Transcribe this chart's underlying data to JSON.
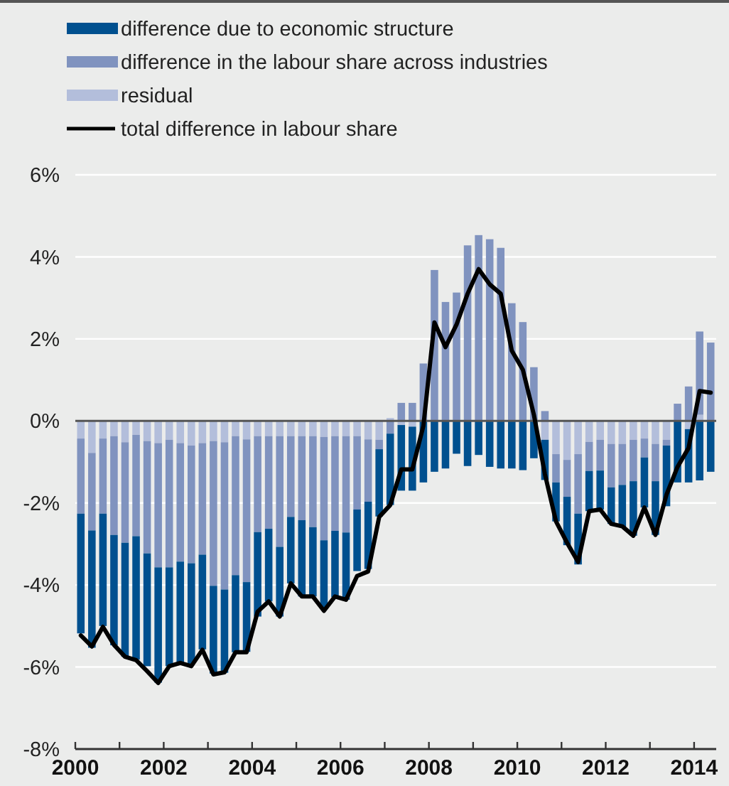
{
  "chart_data": {
    "type": "bar",
    "stacked": true,
    "x": [
      2000.125,
      2000.375,
      2000.625,
      2000.875,
      2001.125,
      2001.375,
      2001.625,
      2001.875,
      2002.125,
      2002.375,
      2002.625,
      2002.875,
      2003.125,
      2003.375,
      2003.625,
      2003.875,
      2004.125,
      2004.375,
      2004.625,
      2004.875,
      2005.125,
      2005.375,
      2005.625,
      2005.875,
      2006.125,
      2006.375,
      2006.625,
      2006.875,
      2007.125,
      2007.375,
      2007.625,
      2007.875,
      2008.125,
      2008.375,
      2008.625,
      2008.875,
      2009.125,
      2009.375,
      2009.625,
      2009.875,
      2010.125,
      2010.375,
      2010.625,
      2010.875,
      2011.125,
      2011.375,
      2011.625,
      2011.875,
      2012.125,
      2012.375,
      2012.625,
      2012.875,
      2013.125,
      2013.375,
      2013.625,
      2013.875,
      2014.125,
      2014.375
    ],
    "series": [
      {
        "name": "residual",
        "color": "#b3bedb",
        "values": [
          -0.43,
          -0.78,
          -0.43,
          -0.37,
          -0.52,
          -0.34,
          -0.49,
          -0.54,
          -0.46,
          -0.54,
          -0.6,
          -0.54,
          -0.49,
          -0.52,
          -0.37,
          -0.45,
          -0.37,
          -0.37,
          -0.37,
          -0.37,
          -0.37,
          -0.37,
          -0.39,
          -0.37,
          -0.37,
          -0.37,
          -0.45,
          -0.46,
          0.07,
          -0.1,
          -0.14,
          0,
          0,
          0,
          0,
          0,
          0,
          0,
          0,
          0,
          0,
          null,
          -0.46,
          -0.81,
          -0.95,
          -0.81,
          -0.51,
          -0.46,
          -0.56,
          -0.56,
          -0.46,
          -0.43,
          -0.56,
          -0.46,
          0,
          -0.2,
          0.15,
          0
        ]
      },
      {
        "name": "difference in the labour share across industries",
        "color": "#8093bf",
        "values": [
          -1.83,
          -1.89,
          -1.83,
          -2.41,
          -2.45,
          -2.47,
          -2.74,
          -3.03,
          -3.11,
          -2.89,
          -2.87,
          -2.72,
          -3.53,
          -3.59,
          -3.39,
          -3.48,
          -2.34,
          -2.26,
          -2.7,
          -1.97,
          -2.05,
          -2.22,
          -2.52,
          -2.31,
          -2.35,
          -1.79,
          -1.52,
          -0.23,
          -0.31,
          0.44,
          0.44,
          1.4,
          3.68,
          2.9,
          3.13,
          4.28,
          4.53,
          4.43,
          4.22,
          2.87,
          2.41,
          1.31,
          0.24,
          -0.69,
          -0.9,
          -1.45,
          -0.71,
          -0.75,
          -1.06,
          -1.0,
          -1.01,
          -0.46,
          -0.91,
          -0.14,
          0.42,
          0.84,
          2.03,
          1.91
        ]
      },
      {
        "name": "difference due to economic structure",
        "color": "#00508f",
        "values": [
          -2.92,
          -2.86,
          -2.74,
          -2.69,
          -2.78,
          -3.01,
          -2.75,
          -2.81,
          -2.41,
          -2.47,
          -2.45,
          -2.31,
          -2.14,
          -2.03,
          -1.88,
          -1.7,
          -2.06,
          -1.77,
          -1.7,
          -1.62,
          -1.86,
          -1.69,
          -1.68,
          -1.62,
          -1.64,
          -1.5,
          -1.64,
          -1.64,
          -1.74,
          -1.6,
          -1.56,
          -1.5,
          -1.24,
          -1.16,
          -0.8,
          -1.1,
          -0.83,
          -1.12,
          -1.16,
          -1.16,
          -1.2,
          -0.91,
          -0.98,
          -0.95,
          -1.18,
          -1.24,
          -0.98,
          -0.95,
          -0.89,
          -1.02,
          -1.33,
          -1.22,
          -1.31,
          -1.48,
          -1.5,
          -1.3,
          -1.45,
          -1.24
        ]
      },
      {
        "name": "total difference in labour share",
        "type": "line",
        "color": "#000000",
        "values": [
          -5.23,
          -5.5,
          -5.02,
          -5.46,
          -5.75,
          -5.83,
          -6.1,
          -6.39,
          -5.98,
          -5.9,
          -5.98,
          -5.58,
          -6.18,
          -6.13,
          -5.64,
          -5.64,
          -4.65,
          -4.4,
          -4.77,
          -3.96,
          -4.28,
          -4.28,
          -4.63,
          -4.28,
          -4.36,
          -3.78,
          -3.67,
          -2.34,
          -2.05,
          -1.18,
          -1.18,
          -0.12,
          2.4,
          1.8,
          2.35,
          3.1,
          3.7,
          3.33,
          3.1,
          1.71,
          1.25,
          0.15,
          -1.3,
          -2.45,
          -2.97,
          -3.44,
          -2.2,
          -2.16,
          -2.51,
          -2.57,
          -2.8,
          -2.11,
          -2.78,
          -1.8,
          -1.12,
          -0.66,
          0.73,
          0.69
        ]
      }
    ],
    "xlim": [
      2000,
      2014.5
    ],
    "xticks": [
      2000,
      {
        "value": 2001,
        "label": null
      },
      2002,
      {
        "value": 2003,
        "label": null
      },
      2004,
      {
        "value": 2005,
        "label": null
      },
      2006,
      {
        "value": 2007,
        "label": null
      },
      2008,
      {
        "value": 2009,
        "label": null
      },
      2010,
      {
        "value": 2011,
        "label": null
      },
      2012,
      {
        "value": 2013,
        "label": null
      },
      2014
    ],
    "ylim": [
      -8,
      6
    ],
    "yticks": [
      {
        "value": -8,
        "label": "-8%"
      },
      {
        "value": -6,
        "label": "-6%"
      },
      {
        "value": -4,
        "label": "-4%"
      },
      {
        "value": -2,
        "label": "-2%"
      },
      {
        "value": 0,
        "label": "0%"
      },
      {
        "value": 2,
        "label": "2%"
      },
      {
        "value": 4,
        "label": "4%"
      },
      {
        "value": 6,
        "label": "6%"
      }
    ],
    "ref_lines": [
      {
        "axis": "y",
        "value": 0,
        "color": "#555555"
      }
    ],
    "grid": "y",
    "legend": "top left"
  }
}
